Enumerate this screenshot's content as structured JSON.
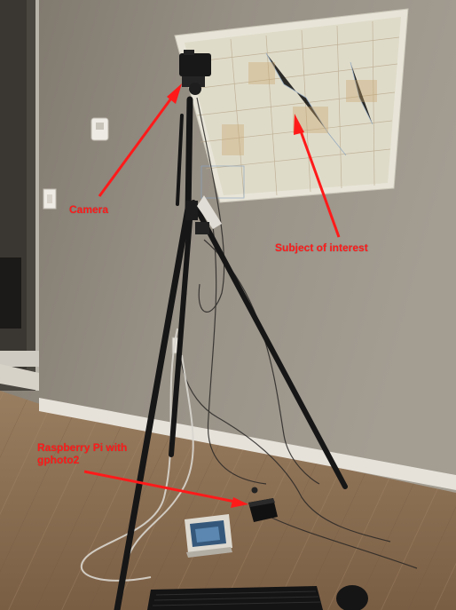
{
  "annotations": {
    "camera": "Camera",
    "subject": "Subject of interest",
    "pi_line1": "Raspberry Pi with",
    "pi_line2": "gphoto2"
  },
  "colors": {
    "wall": "#918a7f",
    "floor": "#8b6f52",
    "baseboard": "#e8e5de",
    "arrow": "#ff1a1a",
    "tripod": "#1a1a1a",
    "map": "#e6e3d6"
  },
  "icons": [
    "camera-icon",
    "tripod-icon",
    "map-icon",
    "arrow-icon",
    "keyboard-icon",
    "mouse-icon",
    "raspberry-pi-icon",
    "thermostat-icon",
    "light-switch-icon"
  ]
}
